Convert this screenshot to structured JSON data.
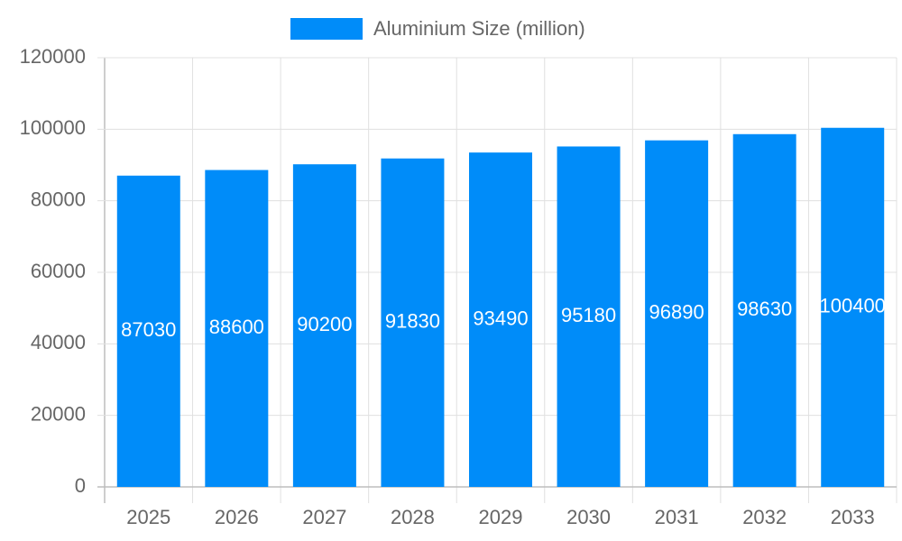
{
  "chart_data": {
    "type": "bar",
    "categories": [
      "2025",
      "2026",
      "2027",
      "2028",
      "2029",
      "2030",
      "2031",
      "2032",
      "2033"
    ],
    "series": [
      {
        "name": "Aluminium Size (million)",
        "color": "#008cf9",
        "values": [
          87030,
          88600,
          90200,
          91830,
          93490,
          95180,
          96890,
          98630,
          100400
        ]
      }
    ],
    "ylim": [
      0,
      120000
    ],
    "yticks": [
      0,
      20000,
      40000,
      60000,
      80000,
      100000,
      120000
    ],
    "grid": true,
    "legend": "top",
    "data_labels": true
  }
}
